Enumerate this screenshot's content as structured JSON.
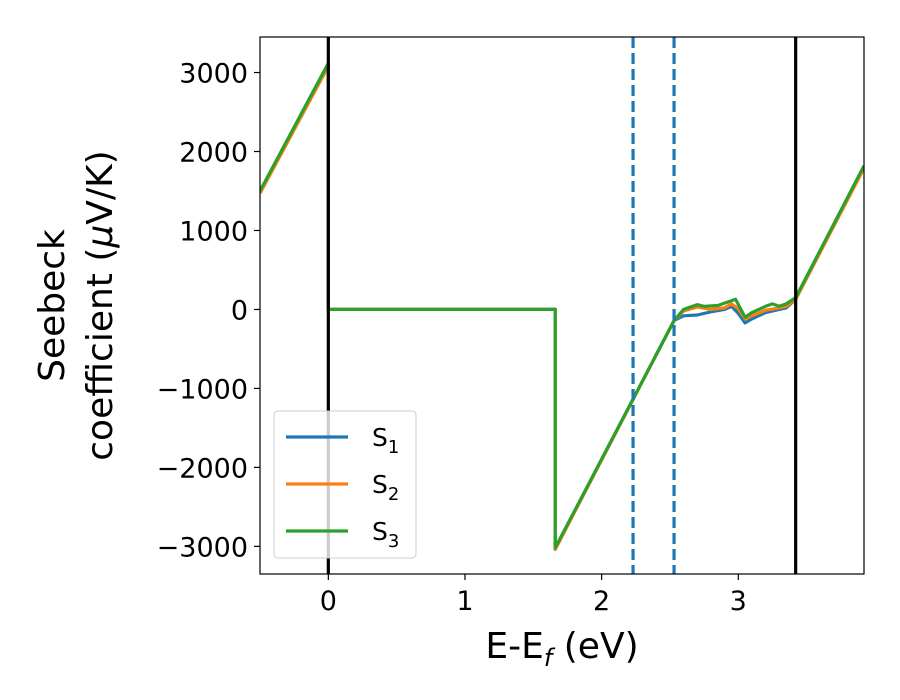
{
  "chart_data": {
    "type": "line",
    "xlabel_main": "E-E",
    "xlabel_sub": "f",
    "xlabel_unit": " (eV)",
    "ylabel_line1": "Seebeck",
    "ylabel_line2_text": "coefficient  (",
    "ylabel_mu": "μ",
    "ylabel_line2_unit": "V/K)",
    "xlim": [
      -0.5,
      3.92
    ],
    "ylim": [
      -3350,
      3450
    ],
    "xticks": [
      0,
      1,
      2,
      3
    ],
    "xtick_labels": [
      "0",
      "1",
      "2",
      "3"
    ],
    "yticks": [
      -3000,
      -2000,
      -1000,
      0,
      1000,
      2000,
      3000
    ],
    "ytick_labels": [
      "−3000",
      "−2000",
      "−1000",
      "0",
      "1000",
      "2000",
      "3000"
    ],
    "vlines_solid": [
      0.0,
      3.42
    ],
    "vlines_dashed": [
      2.23,
      2.53
    ],
    "legend_position": "lower-left",
    "series": [
      {
        "name": "S",
        "subscript": "1",
        "color": "#1f77b4",
        "points": [
          [
            -0.5,
            1480
          ],
          [
            0.0,
            3100
          ],
          [
            0.0,
            0
          ],
          [
            1.66,
            0
          ],
          [
            1.66,
            -3030
          ],
          [
            2.53,
            -140
          ],
          [
            2.6,
            -80
          ],
          [
            2.7,
            -70
          ],
          [
            2.8,
            -30
          ],
          [
            2.9,
            0
          ],
          [
            2.95,
            40
          ],
          [
            3.0,
            -50
          ],
          [
            3.05,
            -170
          ],
          [
            3.1,
            -120
          ],
          [
            3.2,
            -40
          ],
          [
            3.3,
            0
          ],
          [
            3.35,
            20
          ],
          [
            3.42,
            130
          ],
          [
            3.92,
            1800
          ]
        ]
      },
      {
        "name": "S",
        "subscript": "2",
        "color": "#ff7f0e",
        "points": [
          [
            -0.5,
            1470
          ],
          [
            0.0,
            3080
          ],
          [
            0.0,
            0
          ],
          [
            1.66,
            0
          ],
          [
            1.66,
            -3040
          ],
          [
            2.53,
            -140
          ],
          [
            2.6,
            -20
          ],
          [
            2.7,
            30
          ],
          [
            2.8,
            0
          ],
          [
            2.9,
            20
          ],
          [
            2.95,
            70
          ],
          [
            3.0,
            10
          ],
          [
            3.05,
            -120
          ],
          [
            3.1,
            -80
          ],
          [
            3.2,
            -10
          ],
          [
            3.3,
            20
          ],
          [
            3.35,
            40
          ],
          [
            3.42,
            130
          ],
          [
            3.92,
            1790
          ]
        ]
      },
      {
        "name": "S",
        "subscript": "3",
        "color": "#2ca02c",
        "points": [
          [
            -0.5,
            1500
          ],
          [
            0.0,
            3120
          ],
          [
            0.0,
            0
          ],
          [
            1.66,
            0
          ],
          [
            1.66,
            -3020
          ],
          [
            2.53,
            -140
          ],
          [
            2.6,
            0
          ],
          [
            2.7,
            60
          ],
          [
            2.75,
            40
          ],
          [
            2.85,
            50
          ],
          [
            2.95,
            110
          ],
          [
            2.98,
            130
          ],
          [
            3.05,
            -100
          ],
          [
            3.1,
            -40
          ],
          [
            3.2,
            40
          ],
          [
            3.25,
            70
          ],
          [
            3.3,
            40
          ],
          [
            3.35,
            70
          ],
          [
            3.42,
            150
          ],
          [
            3.92,
            1820
          ]
        ]
      }
    ]
  }
}
